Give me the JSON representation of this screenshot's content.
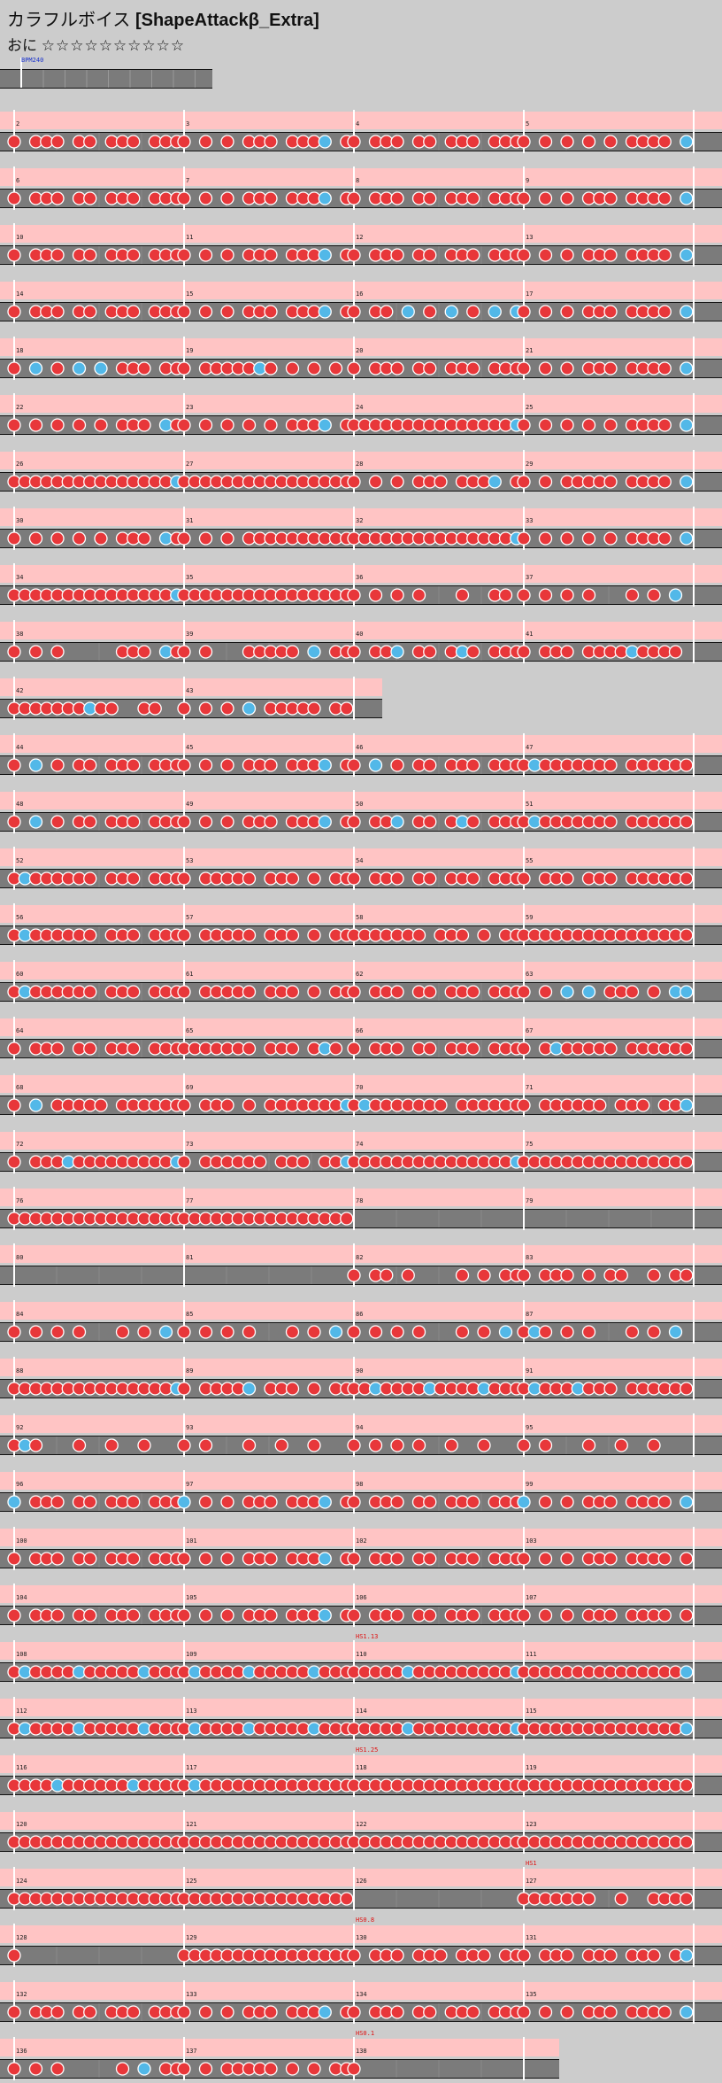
{
  "song": {
    "title": "カラフルボイス",
    "chart_name": "[ShapeAttackβ_Extra]"
  },
  "difficulty": {
    "label": "おに",
    "stars": "☆☆☆☆☆☆☆☆☆☆"
  },
  "header": {
    "bpm": "BPM240"
  },
  "colors": {
    "background": "#cccccc",
    "lane": "#7b7b7b",
    "gogo": "#ffc4c4",
    "don": "#e8373a",
    "ka": "#52b8e8",
    "barline": "#ffffff",
    "bpm_text": "#1a33cc",
    "speed_text": "#e01010"
  },
  "rows": [
    {
      "measures": [
        {
          "num": "2",
          "notes": "1011101101110111"
        },
        {
          "num": "3",
          "notes": "1010101110111201"
        },
        {
          "num": "4",
          "notes": "1011101101110111"
        },
        {
          "num": "5",
          "notes": "1010101010111102"
        }
      ]
    },
    {
      "measures": [
        {
          "num": "6",
          "notes": "1011101101110111"
        },
        {
          "num": "7",
          "notes": "1010101110111201"
        },
        {
          "num": "8",
          "notes": "1011101101110111"
        },
        {
          "num": "9",
          "notes": "1010101110111102"
        }
      ]
    },
    {
      "measures": [
        {
          "num": "10",
          "notes": "1011101101110111"
        },
        {
          "num": "11",
          "notes": "1010101110111201"
        },
        {
          "num": "12",
          "notes": "1011101101110111"
        },
        {
          "num": "13",
          "notes": "1010101110111102"
        }
      ]
    },
    {
      "measures": [
        {
          "num": "14",
          "notes": "1011101101110111"
        },
        {
          "num": "15",
          "notes": "1010101110111201"
        },
        {
          "num": "16",
          "notes": "1011020102010202"
        },
        {
          "num": "17",
          "notes": "1010101110111102"
        }
      ]
    },
    {
      "measures": [
        {
          "num": "18",
          "notes": "1020102020111011"
        },
        {
          "num": "19",
          "notes": "1011111210101010"
        },
        {
          "num": "20",
          "notes": "1011101101110111"
        },
        {
          "num": "21",
          "notes": "1010101110111102"
        }
      ]
    },
    {
      "measures": [
        {
          "num": "22",
          "notes": "1010101010111021"
        },
        {
          "num": "23",
          "notes": "1010101010111201"
        },
        {
          "num": "24",
          "notes": "1111111111111112"
        },
        {
          "num": "25",
          "notes": "1010101010111102"
        }
      ]
    },
    {
      "measures": [
        {
          "num": "26",
          "notes": "1111111111111112"
        },
        {
          "num": "27",
          "notes": "1111111111111111"
        },
        {
          "num": "28",
          "notes": "1010101110111201"
        },
        {
          "num": "29",
          "notes": "1010111110111102"
        }
      ]
    },
    {
      "measures": [
        {
          "num": "30",
          "notes": "1010101010111021"
        },
        {
          "num": "31",
          "notes": "1010101111111111"
        },
        {
          "num": "32",
          "notes": "1111111111111112"
        },
        {
          "num": "33",
          "notes": "1010101010111102"
        }
      ]
    },
    {
      "measures": [
        {
          "num": "34",
          "notes": "1111111111111112"
        },
        {
          "num": "35",
          "notes": "1111111111111111"
        },
        {
          "num": "36",
          "notes": "1010101000100110"
        },
        {
          "num": "37",
          "notes": "1010101000101020"
        }
      ]
    },
    {
      "measures": [
        {
          "num": "38",
          "notes": "1010100000111021"
        },
        {
          "num": "39",
          "notes": "1010001111102011"
        },
        {
          "num": "40",
          "notes": "1011201101210111"
        },
        {
          "num": "41",
          "notes": "1011101111211110"
        }
      ]
    },
    {
      "measures": [
        {
          "num": "42",
          "notes": "1111111211001100"
        },
        {
          "num": "43",
          "notes": "1010102011111011"
        }
      ]
    },
    {
      "measures": [
        {
          "num": "44",
          "notes": "1020101101110111"
        },
        {
          "num": "45",
          "notes": "1010101110111201"
        },
        {
          "num": "46",
          "notes": "1020101101110111"
        },
        {
          "num": "47",
          "notes": "1211111110111111"
        }
      ]
    },
    {
      "measures": [
        {
          "num": "48",
          "notes": "1020101101110111"
        },
        {
          "num": "49",
          "notes": "1010101110111201"
        },
        {
          "num": "50",
          "notes": "1011201101210111"
        },
        {
          "num": "51",
          "notes": "1211111110111111"
        }
      ]
    },
    {
      "measures": [
        {
          "num": "52",
          "notes": "1211111101110111"
        },
        {
          "num": "53",
          "notes": "1011111011101011"
        },
        {
          "num": "54",
          "notes": "1011101101110111"
        },
        {
          "num": "55",
          "notes": "1011101110111111"
        }
      ]
    },
    {
      "measures": [
        {
          "num": "56",
          "notes": "1211111101110111"
        },
        {
          "num": "57",
          "notes": "1011111011101011"
        },
        {
          "num": "58",
          "notes": "1111111011101011"
        },
        {
          "num": "59",
          "notes": "1111111111111111"
        }
      ]
    },
    {
      "measures": [
        {
          "num": "60",
          "notes": "1211111101110111"
        },
        {
          "num": "61",
          "notes": "1011111011101011"
        },
        {
          "num": "62",
          "notes": "1011101101110111"
        },
        {
          "num": "63",
          "notes": "1010202011101022"
        }
      ]
    },
    {
      "measures": [
        {
          "num": "64",
          "notes": "1011101101110111"
        },
        {
          "num": "65",
          "notes": "1111111011101210"
        },
        {
          "num": "66",
          "notes": "1011101101110111"
        },
        {
          "num": "67",
          "notes": "1012111110111111"
        }
      ]
    },
    {
      "measures": [
        {
          "num": "68",
          "notes": "1020111110111111"
        },
        {
          "num": "69",
          "notes": "1011101011111112"
        },
        {
          "num": "70",
          "notes": "1211111110111111"
        },
        {
          "num": "71",
          "notes": "1011111101110112"
        }
      ]
    },
    {
      "measures": [
        {
          "num": "72",
          "notes": "1011121111111112"
        },
        {
          "num": "73",
          "notes": "1011111101110112"
        },
        {
          "num": "74",
          "notes": "1111111111111112"
        },
        {
          "num": "75",
          "notes": "1111111111111111"
        }
      ]
    },
    {
      "measures": [
        {
          "num": "76",
          "notes": "1111111111111111"
        },
        {
          "num": "77",
          "notes": "1111111111111111"
        },
        {
          "num": "78",
          "notes": "0000000000000000"
        },
        {
          "num": "79",
          "notes": "0000000000000000"
        }
      ]
    },
    {
      "measures": [
        {
          "num": "80",
          "notes": "0000000000000000"
        },
        {
          "num": "81",
          "notes": "0000000000000000"
        },
        {
          "num": "82",
          "notes": "1011010000101011"
        },
        {
          "num": "83",
          "notes": "1011101011001011"
        }
      ]
    },
    {
      "measures": [
        {
          "num": "84",
          "notes": "1010101000101020"
        },
        {
          "num": "85",
          "notes": "1010101000101020"
        },
        {
          "num": "86",
          "notes": "1010101000101020"
        },
        {
          "num": "87",
          "notes": "1210101000101020"
        }
      ]
    },
    {
      "measures": [
        {
          "num": "88",
          "notes": "1111111111111112"
        },
        {
          "num": "89",
          "notes": "1011112011101011"
        },
        {
          "num": "90",
          "notes": "1121111211112111"
        },
        {
          "num": "91",
          "notes": "1211121110111111"
        }
      ]
    },
    {
      "measures": [
        {
          "num": "92",
          "notes": "1210001001001000"
        },
        {
          "num": "93",
          "notes": "1010001001001000"
        },
        {
          "num": "94",
          "notes": "1010101001001000"
        },
        {
          "num": "95",
          "notes": "1010001001001000"
        }
      ]
    },
    {
      "measures": [
        {
          "num": "96",
          "notes": "2011101101110111"
        },
        {
          "num": "97",
          "notes": "2010101110111201"
        },
        {
          "num": "98",
          "notes": "1011101101110111"
        },
        {
          "num": "99",
          "notes": "2010101110111102"
        }
      ]
    },
    {
      "measures": [
        {
          "num": "100",
          "notes": "1011101101110111"
        },
        {
          "num": "101",
          "notes": "1010101110111201"
        },
        {
          "num": "102",
          "notes": "1011101101110111"
        },
        {
          "num": "103",
          "notes": "1010101110111101"
        }
      ]
    },
    {
      "measures": [
        {
          "num": "104",
          "notes": "1011101101110111"
        },
        {
          "num": "105",
          "notes": "1010101110111201"
        },
        {
          "num": "106",
          "notes": "1011101101110111"
        },
        {
          "num": "107",
          "notes": "1010101110111101"
        }
      ]
    },
    {
      "measures": [
        {
          "num": "108",
          "notes": "1211112111112111"
        },
        {
          "num": "109",
          "notes": "1211112111112111"
        },
        {
          "num": "110",
          "hs": "HS1.13",
          "notes": "1111121111111112"
        },
        {
          "num": "111",
          "notes": "1111111111111112"
        }
      ]
    },
    {
      "measures": [
        {
          "num": "112",
          "notes": "1211112111112111"
        },
        {
          "num": "113",
          "notes": "1211112111112111"
        },
        {
          "num": "114",
          "notes": "1111121111111112"
        },
        {
          "num": "115",
          "notes": "1111111111111112"
        }
      ]
    },
    {
      "measures": [
        {
          "num": "116",
          "notes": "1111211111121111"
        },
        {
          "num": "117",
          "notes": "1211111111111111"
        },
        {
          "num": "118",
          "hs": "HS1.25",
          "notes": "1111111111111111"
        },
        {
          "num": "119",
          "notes": "1111111111111111"
        }
      ]
    },
    {
      "measures": [
        {
          "num": "120",
          "notes": "1111111111111111"
        },
        {
          "num": "121",
          "notes": "1111111111111111"
        },
        {
          "num": "122",
          "notes": "1111111111111111"
        },
        {
          "num": "123",
          "notes": "1111111111111111"
        }
      ]
    },
    {
      "measures": [
        {
          "num": "124",
          "notes": "1111111111111111"
        },
        {
          "num": "125",
          "notes": "1111111111111111"
        },
        {
          "num": "126",
          "notes": "0000000000000000"
        },
        {
          "num": "127",
          "hs": "HS1",
          "notes": "1111111001001111"
        }
      ]
    },
    {
      "measures": [
        {
          "num": "128",
          "notes": "1000000000000000"
        },
        {
          "num": "129",
          "notes": "1111111111111111"
        },
        {
          "num": "130",
          "hs": "HS0.8",
          "notes": "1011101110111011"
        },
        {
          "num": "131",
          "notes": "1011101110111012"
        }
      ]
    },
    {
      "measures": [
        {
          "num": "132",
          "notes": "1011101101110111"
        },
        {
          "num": "133",
          "notes": "1010101110111201"
        },
        {
          "num": "134",
          "notes": "1011101101110111"
        },
        {
          "num": "135",
          "notes": "1010101110111102"
        }
      ]
    },
    {
      "measures": [
        {
          "num": "136",
          "notes": "1010100000102011"
        },
        {
          "num": "137",
          "notes": "1010111110101011"
        },
        {
          "num": "138",
          "hs": "HS0.1",
          "notes": "1000000000000000"
        }
      ]
    }
  ]
}
